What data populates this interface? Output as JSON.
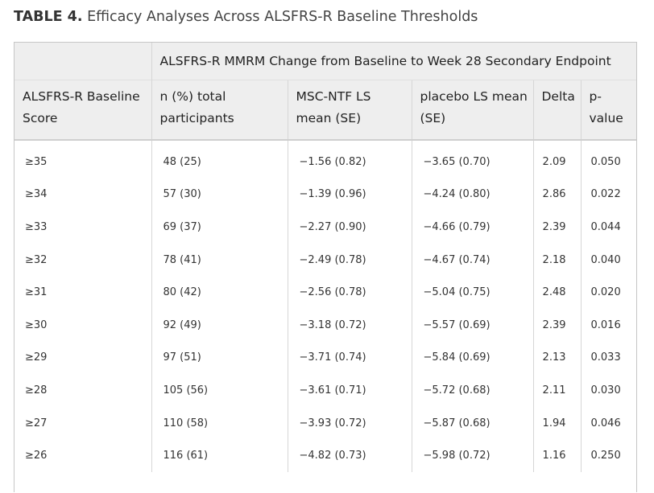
{
  "caption": {
    "label": "TABLE 4.",
    "title": "Efficacy Analyses Across ALSFRS-R Baseline Thresholds"
  },
  "table": {
    "group_header": "ALSFRS-R MMRM Change from Baseline to Week 28 Secondary Endpoint",
    "columns": [
      [
        "ALSFRS-R Baseline",
        "Score"
      ],
      [
        "n (%) total",
        "participants"
      ],
      [
        "MSC-NTF LS",
        "mean (SE)"
      ],
      [
        "placebo LS mean",
        "(SE)"
      ],
      [
        "Delta"
      ],
      [
        "p-",
        "value"
      ]
    ],
    "rows": [
      [
        "≥35",
        "48 (25)",
        "−1.56 (0.82)",
        "−3.65 (0.70)",
        "2.09",
        "0.050"
      ],
      [
        "≥34",
        "57 (30)",
        "−1.39 (0.96)",
        "−4.24 (0.80)",
        "2.86",
        "0.022"
      ],
      [
        "≥33",
        "69 (37)",
        "−2.27 (0.90)",
        "−4.66 (0.79)",
        "2.39",
        "0.044"
      ],
      [
        "≥32",
        "78 (41)",
        "−2.49 (0.78)",
        "−4.67 (0.74)",
        "2.18",
        "0.040"
      ],
      [
        "≥31",
        "80 (42)",
        "−2.56 (0.78)",
        "−5.04 (0.75)",
        "2.48",
        "0.020"
      ],
      [
        "≥30",
        "92 (49)",
        "−3.18 (0.72)",
        "−5.57 (0.69)",
        "2.39",
        "0.016"
      ],
      [
        "≥29",
        "97 (51)",
        "−3.71 (0.74)",
        "−5.84 (0.69)",
        "2.13",
        "0.033"
      ],
      [
        "≥28",
        "105 (56)",
        "−3.61 (0.71)",
        "−5.72 (0.68)",
        "2.11",
        "0.030"
      ],
      [
        "≥27",
        "110 (58)",
        "−3.93 (0.72)",
        "−5.87 (0.68)",
        "1.94",
        "0.046"
      ],
      [
        "≥26",
        "116 (61)",
        "−4.82 (0.73)",
        "−5.98 (0.72)",
        "1.16",
        "0.250"
      ]
    ]
  }
}
